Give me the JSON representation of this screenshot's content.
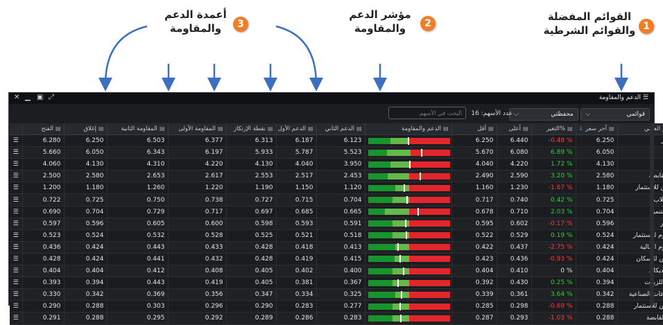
{
  "callouts": {
    "c1": {
      "num": "1",
      "line1": "القوائم المفضلة",
      "line2": "والقوائم الشرطية"
    },
    "c2": {
      "num": "2",
      "line1": "مؤشر الدعم",
      "line2": "والمقاومة"
    },
    "c3": {
      "num": "3",
      "line1": "أعمدة الدعم",
      "line2": "والمقاومة"
    }
  },
  "colors": {
    "badge": "#f07e26",
    "arrow": "#3c6fc2",
    "positive": "#2fcf3a",
    "negative": "#ff3b3b",
    "bar_red": "#e3262b",
    "bar_green_light": "#64b94a",
    "bar_green_dark": "#17942b"
  },
  "window": {
    "title": "الدعم والمقاومة",
    "title_icon": "menu-icon",
    "controls": [
      "close-icon",
      "minimize-icon",
      "restore-icon",
      "expand-icon"
    ]
  },
  "toolbar": {
    "lists_select": "قوائمي",
    "portfolio_select": "محفظتي",
    "stock_count": "عدد الأسهم: 16",
    "search_placeholder": "البحث في الأسهم"
  },
  "columns": {
    "name": "الإسم العربي",
    "last": "آخر سعر",
    "change": "%التغير",
    "high": "أعلى",
    "low": "أقل",
    "indicator": "الدعم والمقاومة",
    "s2": "الدعم الثاني",
    "s1": "الدعم الأول",
    "pivot": "نقطة الإرتكاز",
    "r1": "المقاومة الأولى",
    "r2": "المقاومة الثانية",
    "close": "إغلاق",
    "open": "الفتح"
  },
  "rows": [
    {
      "name": "بالم هيلز",
      "last": "6.250",
      "change": "-0.48 %",
      "dir": "neg",
      "high": "6.440",
      "low": "6.250",
      "s2": "6.123",
      "s1": "6.187",
      "pivot": "6.313",
      "r1": "6.377",
      "r2": "6.503",
      "close": "6.250",
      "open": "6.280",
      "bar": [
        0.27,
        0.5,
        0.48
      ]
    },
    {
      "name": "عتاقة",
      "last": "6.050",
      "change": "6.89 %",
      "dir": "pos",
      "high": "6.080",
      "low": "5.670",
      "s2": "5.523",
      "s1": "5.787",
      "pivot": "5.933",
      "r1": "6.197",
      "r2": "6.343",
      "close": "6.050",
      "open": "5.660",
      "bar": [
        0.23,
        0.52,
        0.64
      ]
    },
    {
      "name": "راميدا",
      "last": "4.130",
      "change": "1.72 %",
      "dir": "pos",
      "high": "4.220",
      "low": "4.040",
      "s2": "3.950",
      "s1": "4.040",
      "pivot": "4.130",
      "r1": "4.220",
      "r2": "4.310",
      "close": "4.130",
      "open": "4.060",
      "bar": [
        0.27,
        0.5,
        0.5
      ]
    },
    {
      "name": "بلتون القابضة",
      "last": "2.580",
      "change": "3.20 %",
      "dir": "pos",
      "high": "2.590",
      "low": "2.490",
      "s2": "2.453",
      "s1": "2.517",
      "pivot": "2.553",
      "r1": "2.617",
      "r2": "2.653",
      "close": "2.580",
      "open": "2.500",
      "bar": [
        0.24,
        0.5,
        0.63
      ]
    },
    {
      "name": "جو جرين للاستثمار",
      "last": "1.180",
      "change": "-1.67 %",
      "dir": "neg",
      "high": "1.230",
      "low": "1.160",
      "s2": "1.120",
      "s1": "1.150",
      "pivot": "1.190",
      "r1": "1.220",
      "r2": "1.260",
      "close": "1.180",
      "open": "1.200",
      "bar": [
        0.33,
        0.5,
        0.43
      ]
    },
    {
      "name": "ليفت سلاب",
      "last": "0.725",
      "change": "0.42 %",
      "dir": "pos",
      "high": "0.740",
      "low": "0.717",
      "s2": "0.704",
      "s1": "0.715",
      "pivot": "0.727",
      "r1": "0.738",
      "r2": "0.750",
      "close": "0.725",
      "open": "0.722",
      "bar": [
        0.3,
        0.5,
        0.47
      ]
    },
    {
      "name": "لوتس للتنمية",
      "last": "0.704",
      "change": "2.03 %",
      "dir": "pos",
      "high": "0.710",
      "low": "0.678",
      "s2": "0.665",
      "s1": "0.685",
      "pivot": "0.697",
      "r1": "0.717",
      "r2": "0.729",
      "close": "0.704",
      "open": "0.690",
      "bar": [
        0.2,
        0.5,
        0.6
      ]
    },
    {
      "name": "نهر الخير",
      "last": "0.596",
      "change": "-0.17 %",
      "dir": "neg",
      "high": "0.602",
      "low": "0.595",
      "s2": "0.591",
      "s1": "0.593",
      "pivot": "0.598",
      "r1": "0.600",
      "r2": "0.605",
      "close": "0.596",
      "open": "0.597",
      "bar": [
        0.3,
        0.5,
        0.45
      ]
    },
    {
      "name": "اوراسكوم للاستثمار",
      "last": "0.524",
      "change": "0.19 %",
      "dir": "pos",
      "high": "0.529",
      "low": "0.522",
      "s2": "0.518",
      "s1": "0.521",
      "pivot": "0.525",
      "r1": "0.528",
      "r2": "0.532",
      "close": "0.524",
      "open": "0.523",
      "bar": [
        0.3,
        0.5,
        0.46
      ]
    },
    {
      "name": "اوراسكوم المالية",
      "last": "0.424",
      "change": "-2.75 %",
      "dir": "neg",
      "high": "0.437",
      "low": "0.422",
      "s2": "0.413",
      "s1": "0.418",
      "pivot": "0.428",
      "r1": "0.433",
      "r2": "0.443",
      "close": "0.424",
      "open": "0.436",
      "bar": [
        0.33,
        0.5,
        0.36
      ]
    },
    {
      "name": "المصريين للاسكان",
      "last": "0.424",
      "change": "-0.93 %",
      "dir": "neg",
      "high": "0.436",
      "low": "0.423",
      "s2": "0.415",
      "s1": "0.419",
      "pivot": "0.428",
      "r1": "0.432",
      "r2": "0.441",
      "close": "0.424",
      "open": "0.428",
      "bar": [
        0.32,
        0.5,
        0.38
      ]
    },
    {
      "name": "سبيد ميديكال",
      "last": "0.404",
      "change": "0 %",
      "dir": "neu",
      "high": "0.410",
      "low": "0.404",
      "s2": "0.400",
      "s1": "0.402",
      "pivot": "0.405",
      "r1": "0.408",
      "r2": "0.412",
      "close": "0.404",
      "open": "0.404",
      "bar": [
        0.3,
        0.5,
        0.42
      ]
    },
    {
      "name": "القاهرة للزيوت",
      "last": "0.394",
      "change": "0.25 %",
      "dir": "pos",
      "high": "0.430",
      "low": "0.392",
      "s2": "0.367",
      "s1": "0.381",
      "pivot": "0.405",
      "r1": "0.419",
      "r2": "0.443",
      "close": "0.394",
      "open": "0.393",
      "bar": [
        0.3,
        0.5,
        0.36
      ]
    },
    {
      "name": "المشروعات الصناعية",
      "last": "0.342",
      "change": "3.64 %",
      "dir": "pos",
      "high": "0.361",
      "low": "0.339",
      "s2": "0.325",
      "s1": "0.334",
      "pivot": "0.347",
      "r1": "0.356",
      "r2": "0.369",
      "close": "0.342",
      "open": "0.330",
      "bar": [
        0.33,
        0.5,
        0.4
      ]
    },
    {
      "name": "المصريين للاستثمار",
      "last": "0.288",
      "change": "-0.69 %",
      "dir": "neg",
      "high": "0.298",
      "low": "0.285",
      "s2": "0.277",
      "s1": "0.283",
      "pivot": "0.290",
      "r1": "0.296",
      "r2": "0.303",
      "close": "0.288",
      "open": "0.290",
      "bar": [
        0.3,
        0.5,
        0.38
      ]
    },
    {
      "name": "اسباير القابضة",
      "last": "0.288",
      "change": "-1.03 %",
      "dir": "neg",
      "high": "0.293",
      "low": "0.287",
      "s2": "0.283",
      "s1": "0.286",
      "pivot": "0.289",
      "r1": "0.292",
      "r2": "0.295",
      "close": "0.288",
      "open": "0.291",
      "bar": [
        0.3,
        0.5,
        0.39
      ]
    }
  ]
}
